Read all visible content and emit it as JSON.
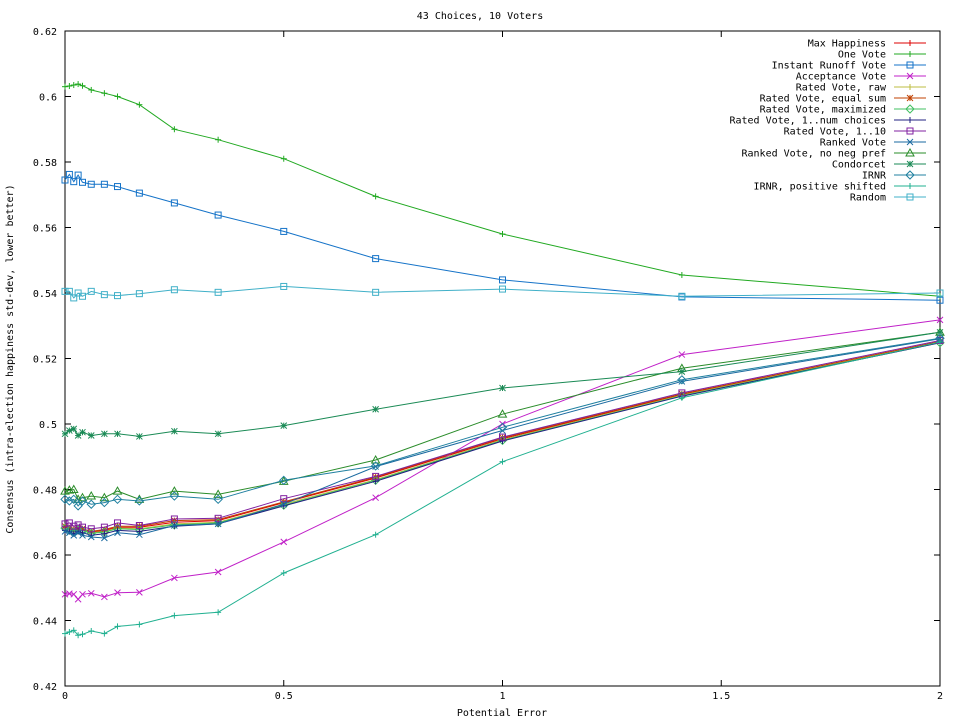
{
  "chart_data": {
    "type": "line",
    "title": "43 Choices, 10 Voters",
    "xlabel": "Potential Error",
    "ylabel": "Consensus (intra-election happiness std-dev, lower better)",
    "xlim": [
      0,
      2
    ],
    "ylim": [
      0.42,
      0.62
    ],
    "xticks": [
      "0",
      "0.5",
      "1",
      "1.5",
      "2"
    ],
    "yticks": [
      "0.42",
      "0.44",
      "0.46",
      "0.48",
      "0.5",
      "0.52",
      "0.54",
      "0.56",
      "0.58",
      "0.6",
      "0.62"
    ],
    "legend_position": "top-right",
    "grid": false,
    "series": [
      {
        "name": "Max Happiness",
        "color": "#dd0000",
        "marker": "plus",
        "x": [
          0,
          0.01,
          0.02,
          0.03,
          0.04,
          0.06,
          0.09,
          0.12,
          0.17,
          0.25,
          0.35,
          0.5,
          0.71,
          1,
          1.41,
          2
        ],
        "y": [
          0.4685,
          0.468,
          0.4675,
          0.468,
          0.4678,
          0.467,
          0.4675,
          0.4685,
          0.4685,
          0.47,
          0.4705,
          0.476,
          0.4835,
          0.4955,
          0.509,
          0.525
        ]
      },
      {
        "name": "One Vote",
        "color": "#21a921",
        "marker": "plus",
        "x": [
          0,
          0.01,
          0.02,
          0.03,
          0.04,
          0.06,
          0.09,
          0.12,
          0.17,
          0.25,
          0.35,
          0.5,
          0.71,
          1,
          1.41,
          2
        ],
        "y": [
          0.603,
          0.6032,
          0.6035,
          0.6038,
          0.6033,
          0.602,
          0.601,
          0.6,
          0.5975,
          0.59,
          0.5868,
          0.581,
          0.5695,
          0.558,
          0.5455,
          0.539
        ]
      },
      {
        "name": "Instant Runoff Vote",
        "color": "#1573c8",
        "marker": "square",
        "x": [
          0,
          0.01,
          0.02,
          0.03,
          0.04,
          0.06,
          0.09,
          0.12,
          0.17,
          0.25,
          0.35,
          0.5,
          0.71,
          1,
          1.41,
          2
        ],
        "y": [
          0.5745,
          0.5762,
          0.574,
          0.576,
          0.5738,
          0.5732,
          0.5732,
          0.5725,
          0.5705,
          0.5675,
          0.5638,
          0.5588,
          0.5505,
          0.544,
          0.5388,
          0.5378
        ]
      },
      {
        "name": "Acceptance Vote",
        "color": "#c020c8",
        "marker": "x",
        "x": [
          0,
          0.01,
          0.02,
          0.03,
          0.04,
          0.06,
          0.09,
          0.12,
          0.17,
          0.25,
          0.35,
          0.5,
          0.71,
          1,
          1.41,
          2
        ],
        "y": [
          0.448,
          0.4482,
          0.448,
          0.4465,
          0.448,
          0.4483,
          0.4472,
          0.4485,
          0.4486,
          0.453,
          0.4548,
          0.464,
          0.4775,
          0.5,
          0.5212,
          0.5318
        ]
      },
      {
        "name": "Rated Vote, raw",
        "color": "#bebe40",
        "marker": "plus",
        "x": [
          0,
          0.01,
          0.02,
          0.03,
          0.04,
          0.06,
          0.09,
          0.12,
          0.17,
          0.25,
          0.35,
          0.5,
          0.71,
          1,
          1.41,
          2
        ],
        "y": [
          0.468,
          0.4678,
          0.4672,
          0.4678,
          0.4675,
          0.4668,
          0.4672,
          0.4682,
          0.468,
          0.4695,
          0.47,
          0.4755,
          0.483,
          0.4952,
          0.5088,
          0.525
        ]
      },
      {
        "name": "Rated Vote, equal sum",
        "color": "#c04000",
        "marker": "star",
        "x": [
          0,
          0.01,
          0.02,
          0.03,
          0.04,
          0.06,
          0.09,
          0.12,
          0.17,
          0.25,
          0.35,
          0.5,
          0.71,
          1,
          1.41,
          2
        ],
        "y": [
          0.4688,
          0.4683,
          0.4678,
          0.4683,
          0.468,
          0.4672,
          0.4678,
          0.4688,
          0.4688,
          0.4705,
          0.4708,
          0.4762,
          0.4838,
          0.4958,
          0.5092,
          0.5252
        ]
      },
      {
        "name": "Rated Vote, maximized",
        "color": "#40c060",
        "marker": "diamond",
        "x": [
          0,
          0.01,
          0.02,
          0.03,
          0.04,
          0.06,
          0.09,
          0.12,
          0.17,
          0.25,
          0.35,
          0.5,
          0.71,
          1,
          1.41,
          2
        ],
        "y": [
          0.4682,
          0.4676,
          0.467,
          0.4676,
          0.4674,
          0.4666,
          0.467,
          0.468,
          0.4678,
          0.4692,
          0.4698,
          0.4752,
          0.4828,
          0.495,
          0.5086,
          0.5248
        ]
      },
      {
        "name": "Rated Vote, 1..num choices",
        "color": "#202080",
        "marker": "plus",
        "x": [
          0,
          0.01,
          0.02,
          0.03,
          0.04,
          0.06,
          0.09,
          0.12,
          0.17,
          0.25,
          0.35,
          0.5,
          0.71,
          1,
          1.41,
          2
        ],
        "y": [
          0.4675,
          0.4672,
          0.4665,
          0.4672,
          0.4668,
          0.466,
          0.4665,
          0.4675,
          0.4672,
          0.4688,
          0.4695,
          0.475,
          0.4825,
          0.4948,
          0.5085,
          0.5248
        ]
      },
      {
        "name": "Rated Vote, 1..10",
        "color": "#8020a0",
        "marker": "square",
        "x": [
          0,
          0.01,
          0.02,
          0.03,
          0.04,
          0.06,
          0.09,
          0.12,
          0.17,
          0.25,
          0.35,
          0.5,
          0.71,
          1,
          1.41,
          2
        ],
        "y": [
          0.4695,
          0.4698,
          0.4688,
          0.4692,
          0.4685,
          0.468,
          0.4685,
          0.4698,
          0.469,
          0.471,
          0.4712,
          0.4772,
          0.484,
          0.496,
          0.5095,
          0.5255
        ]
      },
      {
        "name": "Ranked Vote",
        "color": "#1a6aa0",
        "marker": "x",
        "x": [
          0,
          0.01,
          0.02,
          0.03,
          0.04,
          0.06,
          0.09,
          0.12,
          0.17,
          0.25,
          0.35,
          0.5,
          0.71,
          1,
          1.41,
          2
        ],
        "y": [
          0.4672,
          0.4668,
          0.466,
          0.4668,
          0.466,
          0.4655,
          0.4652,
          0.4668,
          0.4662,
          0.469,
          0.4695,
          0.4755,
          0.487,
          0.498,
          0.513,
          0.526
        ]
      },
      {
        "name": "Ranked Vote, no neg pref",
        "color": "#2a8c2a",
        "marker": "triangle",
        "x": [
          0,
          0.01,
          0.02,
          0.03,
          0.04,
          0.06,
          0.09,
          0.12,
          0.17,
          0.25,
          0.35,
          0.5,
          0.71,
          1,
          1.41,
          2
        ],
        "y": [
          0.4795,
          0.4798,
          0.48,
          0.477,
          0.4775,
          0.478,
          0.4775,
          0.4795,
          0.477,
          0.4795,
          0.4785,
          0.4825,
          0.489,
          0.503,
          0.517,
          0.528
        ]
      },
      {
        "name": "Condorcet",
        "color": "#1a8a55",
        "marker": "star",
        "x": [
          0,
          0.01,
          0.02,
          0.03,
          0.04,
          0.06,
          0.09,
          0.12,
          0.17,
          0.25,
          0.35,
          0.5,
          0.71,
          1,
          1.41,
          2
        ],
        "y": [
          0.497,
          0.498,
          0.4985,
          0.4965,
          0.4975,
          0.4965,
          0.497,
          0.497,
          0.4962,
          0.4978,
          0.497,
          0.4995,
          0.5045,
          0.511,
          0.516,
          0.528
        ]
      },
      {
        "name": "IRNR",
        "color": "#2080a0",
        "marker": "diamond",
        "x": [
          0,
          0.01,
          0.02,
          0.03,
          0.04,
          0.06,
          0.09,
          0.12,
          0.17,
          0.25,
          0.35,
          0.5,
          0.71,
          1,
          1.41,
          2
        ],
        "y": [
          0.477,
          0.4765,
          0.477,
          0.475,
          0.4765,
          0.4755,
          0.476,
          0.477,
          0.4765,
          0.478,
          0.477,
          0.4828,
          0.4872,
          0.499,
          0.5135,
          0.5262
        ]
      },
      {
        "name": "IRNR, positive shifted",
        "color": "#20b090",
        "marker": "plus",
        "x": [
          0,
          0.01,
          0.02,
          0.03,
          0.04,
          0.06,
          0.09,
          0.12,
          0.17,
          0.25,
          0.35,
          0.5,
          0.71,
          1,
          1.41,
          2
        ],
        "y": [
          0.436,
          0.4365,
          0.437,
          0.4355,
          0.4358,
          0.4368,
          0.436,
          0.4382,
          0.4388,
          0.4415,
          0.4425,
          0.4545,
          0.4662,
          0.4885,
          0.508,
          0.525
        ]
      },
      {
        "name": "Random",
        "color": "#40b0c8",
        "marker": "square",
        "x": [
          0,
          0.01,
          0.02,
          0.03,
          0.04,
          0.06,
          0.09,
          0.12,
          0.17,
          0.25,
          0.35,
          0.5,
          0.71,
          1,
          1.41,
          2
        ],
        "y": [
          0.5405,
          0.5405,
          0.5385,
          0.54,
          0.539,
          0.5405,
          0.5395,
          0.5392,
          0.5398,
          0.541,
          0.5402,
          0.542,
          0.5402,
          0.5412,
          0.539,
          0.54
        ]
      }
    ]
  }
}
